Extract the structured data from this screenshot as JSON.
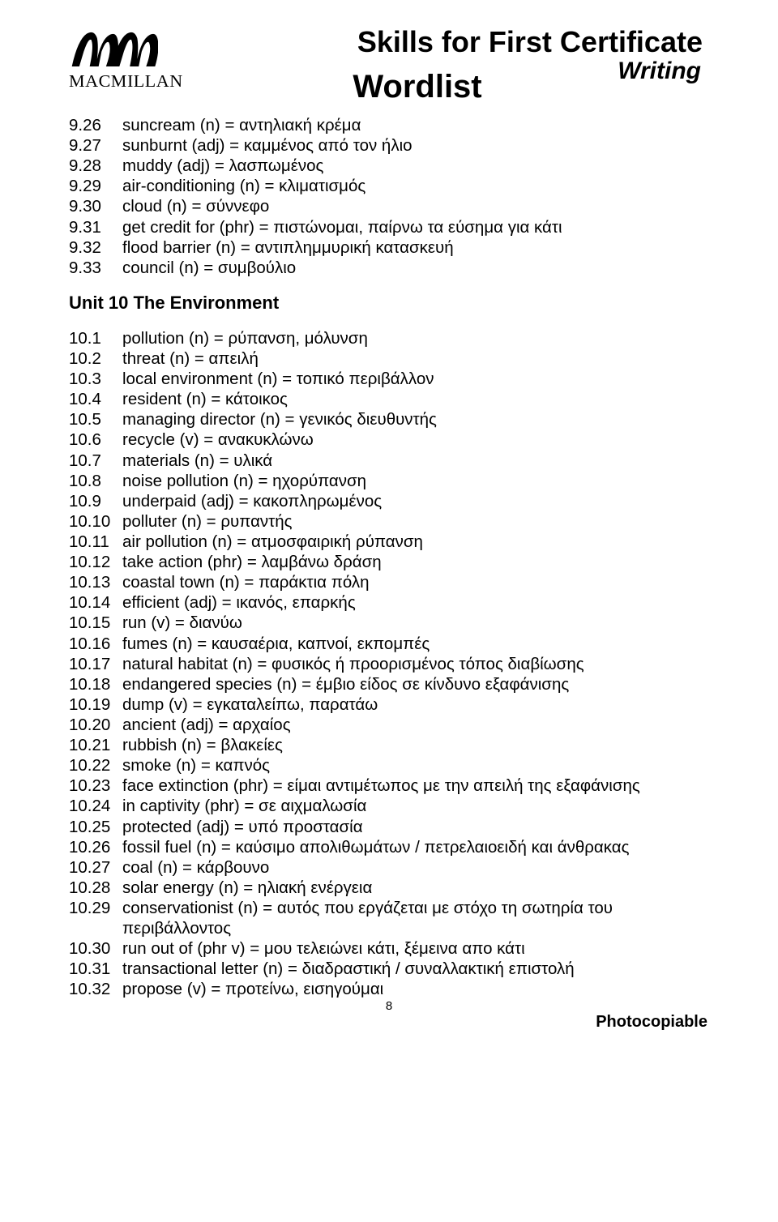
{
  "header": {
    "logo_text": "MACMILLAN",
    "title_main": "Skills for First Certificate",
    "title_sub": "Writing",
    "wordlist": "Wordlist"
  },
  "block1": [
    {
      "n": "9.26",
      "t": "suncream (n) = αντηλιακή κρέμα"
    },
    {
      "n": "9.27",
      "t": "sunburnt (adj) = καμμένος από τον ήλιο"
    },
    {
      "n": "9.28",
      "t": "muddy (adj) = λασπωμένος"
    },
    {
      "n": "9.29",
      "t": "air-conditioning (n) = κλιματισμός"
    },
    {
      "n": "9.30",
      "t": "cloud (n) = σύννεφο"
    },
    {
      "n": "9.31",
      "t": "get credit for (phr) = πιστώνομαι, παίρνω τα εύσημα για κάτι"
    },
    {
      "n": "9.32",
      "t": "flood barrier (n) = αντιπλημμυρική κατασκευή"
    },
    {
      "n": "9.33",
      "t": "council (n) = συμβούλιο"
    }
  ],
  "unit_heading": "Unit 10 The Environment",
  "block2": [
    {
      "n": "10.1",
      "t": "pollution (n) = ρύπανση, μόλυνση"
    },
    {
      "n": "10.2",
      "t": "threat (n) = απειλή"
    },
    {
      "n": "10.3",
      "t": "local environment (n) = τοπικό περιβάλλον"
    },
    {
      "n": "10.4",
      "t": "resident (n) = κάτοικος"
    },
    {
      "n": "10.5",
      "t": "managing director (n) = γενικός διευθυντής"
    },
    {
      "n": "10.6",
      "t": "recycle (v) = ανακυκλώνω"
    },
    {
      "n": "10.7",
      "t": "materials (n) = υλικά"
    },
    {
      "n": "10.8",
      "t": "noise pollution (n) = ηχορύπανση"
    },
    {
      "n": "10.9",
      "t": "underpaid (adj) = κακοπληρωμένος"
    },
    {
      "n": "10.10",
      "t": "polluter (n) = ρυπαντής"
    },
    {
      "n": "10.11",
      "t": "air pollution (n) = ατμοσφαιρική ρύπανση"
    },
    {
      "n": "10.12",
      "t": "take action (phr) = λαμβάνω δράση"
    },
    {
      "n": "10.13",
      "t": "coastal town (n) = παράκτια πόλη"
    },
    {
      "n": "10.14",
      "t": "efficient (adj) = ικανός, επαρκής"
    },
    {
      "n": "10.15",
      "t": "run (v) = διανύω"
    },
    {
      "n": "10.16",
      "t": "fumes (n) = καυσαέρια, καπνοί, εκπομπές"
    },
    {
      "n": "10.17",
      "t": "natural habitat (n) = φυσικός ή προορισμένος τόπος διαβίωσης"
    },
    {
      "n": "10.18",
      "t": "endangered species (n) = έμβιο είδος σε κίνδυνο εξαφάνισης"
    },
    {
      "n": "10.19",
      "t": "dump (v) = εγκαταλείπω, παρατάω"
    },
    {
      "n": "10.20",
      "t": "ancient (adj) = αρχαίος"
    },
    {
      "n": "10.21",
      "t": "rubbish (n) = βλακείες"
    },
    {
      "n": "10.22",
      "t": "smoke (n) = καπνός"
    },
    {
      "n": "10.23",
      "t": "face extinction (phr) = είμαι αντιμέτωπος με την απειλή της εξαφάνισης"
    },
    {
      "n": "10.24",
      "t": "in captivity (phr) = σε αιχμαλωσία"
    },
    {
      "n": "10.25",
      "t": "protected (adj) = υπό προστασία"
    },
    {
      "n": "10.26",
      "t": "fossil fuel (n) = καύσιμο απολιθωμάτων / πετρελαιοειδή και άνθρακας"
    },
    {
      "n": "10.27",
      "t": "coal (n) = κάρβουνο"
    },
    {
      "n": "10.28",
      "t": "solar energy (n) = ηλιακή ενέργεια"
    },
    {
      "n": "10.29",
      "t": "conservationist (n) = αυτός που εργάζεται με στόχο τη σωτηρία του περιβάλλοντος"
    },
    {
      "n": "10.30",
      "t": "run out of (phr v) = μου τελειώνει κάτι, ξέμεινα απο κάτι"
    },
    {
      "n": "10.31",
      "t": "transactional letter (n) = διαδραστική / συναλλακτική επιστολή"
    },
    {
      "n": "10.32",
      "t": "propose (v) = προτείνω, εισηγούμαι"
    }
  ],
  "page_number": "8",
  "footer": "Photocopiable"
}
